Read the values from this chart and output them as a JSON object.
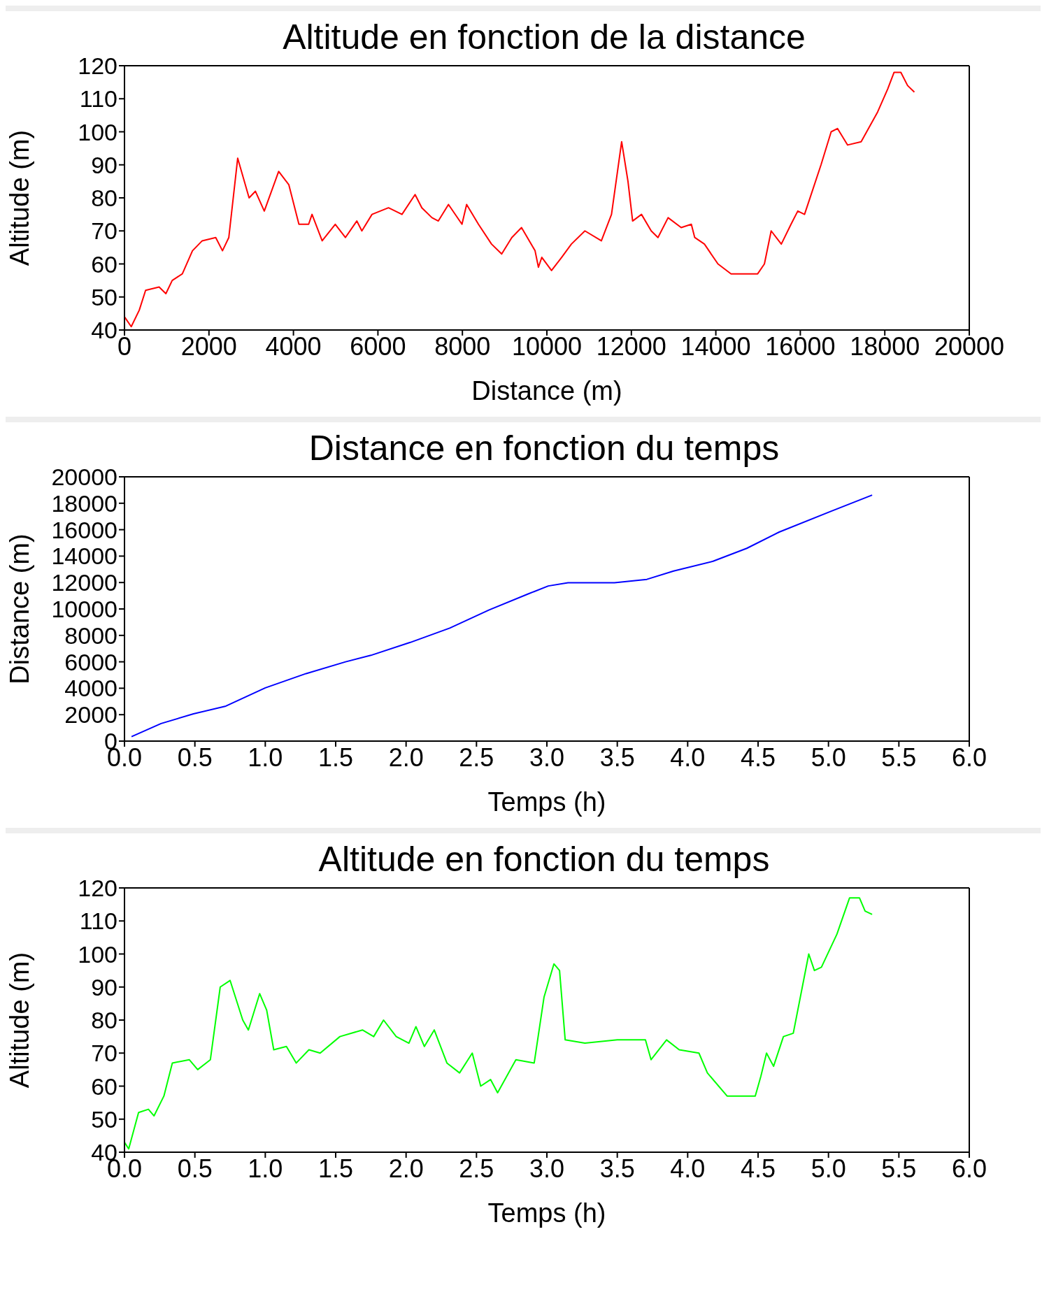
{
  "chart_data": [
    {
      "type": "line",
      "title": "Altitude en fonction de la distance",
      "xlabel": "Distance (m)",
      "ylabel": "Altitude (m)",
      "xlim": [
        0,
        20000
      ],
      "xticks": [
        0,
        2000,
        4000,
        6000,
        8000,
        10000,
        12000,
        14000,
        16000,
        18000,
        20000
      ],
      "ylim": [
        40,
        120
      ],
      "yticks": [
        40,
        50,
        60,
        70,
        80,
        90,
        100,
        110,
        120
      ],
      "x": [
        0,
        160,
        350,
        500,
        820,
        980,
        1130,
        1370,
        1610,
        1840,
        2160,
        2320,
        2470,
        2680,
        2950,
        3100,
        3310,
        3650,
        3890,
        4130,
        4360,
        4440,
        4680,
        4990,
        5230,
        5500,
        5620,
        5860,
        6250,
        6570,
        6880,
        7040,
        7280,
        7430,
        7670,
        7990,
        8100,
        8380,
        8690,
        8930,
        9170,
        9400,
        9720,
        9800,
        9880,
        10110,
        10350,
        10580,
        10900,
        11290,
        11530,
        11770,
        11920,
        12030,
        12240,
        12470,
        12630,
        12870,
        13180,
        13420,
        13500,
        13730,
        14050,
        14360,
        14990,
        15150,
        15310,
        15550,
        15780,
        15940,
        16100,
        16490,
        16730,
        16880,
        17120,
        17440,
        17830,
        18070,
        18220,
        18380,
        18540,
        18700
      ],
      "series": [
        {
          "color": "#ff0000",
          "values": [
            44,
            41,
            46,
            52,
            53,
            51,
            55,
            57,
            64,
            67,
            68,
            64,
            68,
            92,
            80,
            82,
            76,
            88,
            84,
            72,
            72,
            75,
            67,
            72,
            68,
            73,
            70,
            75,
            77,
            75,
            81,
            77,
            74,
            73,
            78,
            72,
            78,
            72,
            66,
            63,
            68,
            71,
            64,
            59,
            62,
            58,
            62,
            66,
            70,
            67,
            75,
            97,
            85,
            73,
            75,
            70,
            68,
            74,
            71,
            72,
            68,
            66,
            60,
            57,
            57,
            60,
            70,
            66,
            72,
            76,
            75,
            90,
            100,
            101,
            96,
            97,
            106,
            113,
            118,
            118,
            114,
            112
          ]
        }
      ]
    },
    {
      "type": "line",
      "title": "Distance en fonction du temps",
      "xlabel": "Temps (h)",
      "ylabel": "Distance (m)",
      "xlim": [
        0,
        6
      ],
      "xticks": [
        {
          "value": 0,
          "label": "0.0"
        },
        {
          "value": 0.5,
          "label": "0.5"
        },
        {
          "value": 1,
          "label": "1.0"
        },
        {
          "value": 1.5,
          "label": "1.5"
        },
        {
          "value": 2,
          "label": "2.0"
        },
        {
          "value": 2.5,
          "label": "2.5"
        },
        {
          "value": 3,
          "label": "3.0"
        },
        {
          "value": 3.5,
          "label": "3.5"
        },
        {
          "value": 4,
          "label": "4.0"
        },
        {
          "value": 4.5,
          "label": "4.5"
        },
        {
          "value": 5,
          "label": "5.0"
        },
        {
          "value": 5.5,
          "label": "5.5"
        },
        {
          "value": 6,
          "label": "6.0"
        }
      ],
      "ylim": [
        0,
        20000
      ],
      "yticks": [
        0,
        2000,
        4000,
        6000,
        8000,
        10000,
        12000,
        14000,
        16000,
        18000,
        20000
      ],
      "x": [
        0.05,
        0.26,
        0.49,
        0.72,
        1.0,
        1.29,
        1.57,
        1.75,
        2.03,
        2.31,
        2.59,
        2.87,
        3.01,
        3.15,
        3.48,
        3.71,
        3.9,
        4.18,
        4.42,
        4.65,
        5.02,
        5.31
      ],
      "series": [
        {
          "color": "#0000ff",
          "values": [
            340,
            1330,
            2060,
            2650,
            4030,
            5110,
            6000,
            6490,
            7470,
            8550,
            9930,
            11150,
            11740,
            11990,
            11990,
            12240,
            12870,
            13610,
            14590,
            15820,
            17400,
            18620
          ]
        }
      ]
    },
    {
      "type": "line",
      "title": "Altitude en fonction du temps",
      "xlabel": "Temps (h)",
      "ylabel": "Altitude (m)",
      "xlim": [
        0,
        6
      ],
      "xticks": [
        {
          "value": 0,
          "label": "0.0"
        },
        {
          "value": 0.5,
          "label": "0.5"
        },
        {
          "value": 1,
          "label": "1.0"
        },
        {
          "value": 1.5,
          "label": "1.5"
        },
        {
          "value": 2,
          "label": "2.0"
        },
        {
          "value": 2.5,
          "label": "2.5"
        },
        {
          "value": 3,
          "label": "3.0"
        },
        {
          "value": 3.5,
          "label": "3.5"
        },
        {
          "value": 4,
          "label": "4.0"
        },
        {
          "value": 4.5,
          "label": "4.5"
        },
        {
          "value": 5,
          "label": "5.0"
        },
        {
          "value": 5.5,
          "label": "5.5"
        },
        {
          "value": 6,
          "label": "6.0"
        }
      ],
      "ylim": [
        40,
        120
      ],
      "yticks": [
        40,
        50,
        60,
        70,
        80,
        90,
        100,
        110,
        120
      ],
      "x": [
        0,
        0.03,
        0.1,
        0.17,
        0.21,
        0.28,
        0.34,
        0.46,
        0.52,
        0.61,
        0.68,
        0.75,
        0.84,
        0.88,
        0.96,
        1.01,
        1.06,
        1.15,
        1.22,
        1.31,
        1.39,
        1.53,
        1.69,
        1.77,
        1.84,
        1.93,
        2.02,
        2.07,
        2.13,
        2.2,
        2.29,
        2.38,
        2.47,
        2.53,
        2.6,
        2.65,
        2.78,
        2.91,
        2.98,
        3.05,
        3.09,
        3.13,
        3.27,
        3.5,
        3.7,
        3.74,
        3.85,
        3.94,
        4.08,
        4.14,
        4.28,
        4.48,
        4.52,
        4.56,
        4.61,
        4.68,
        4.75,
        4.86,
        4.9,
        4.95,
        5.06,
        5.15,
        5.22,
        5.26,
        5.31
      ],
      "series": [
        {
          "color": "#00ff00",
          "values": [
            43,
            41,
            52,
            53,
            51,
            57,
            67,
            68,
            65,
            68,
            90,
            92,
            80,
            77,
            88,
            83,
            71,
            72,
            67,
            71,
            70,
            75,
            77,
            75,
            80,
            75,
            73,
            78,
            72,
            77,
            67,
            64,
            70,
            60,
            62,
            58,
            68,
            67,
            87,
            97,
            95,
            74,
            73,
            74,
            74,
            68,
            74,
            71,
            70,
            64,
            57,
            57,
            63,
            70,
            66,
            75,
            76,
            100,
            95,
            96,
            106,
            117,
            117,
            113,
            112
          ]
        }
      ]
    }
  ]
}
